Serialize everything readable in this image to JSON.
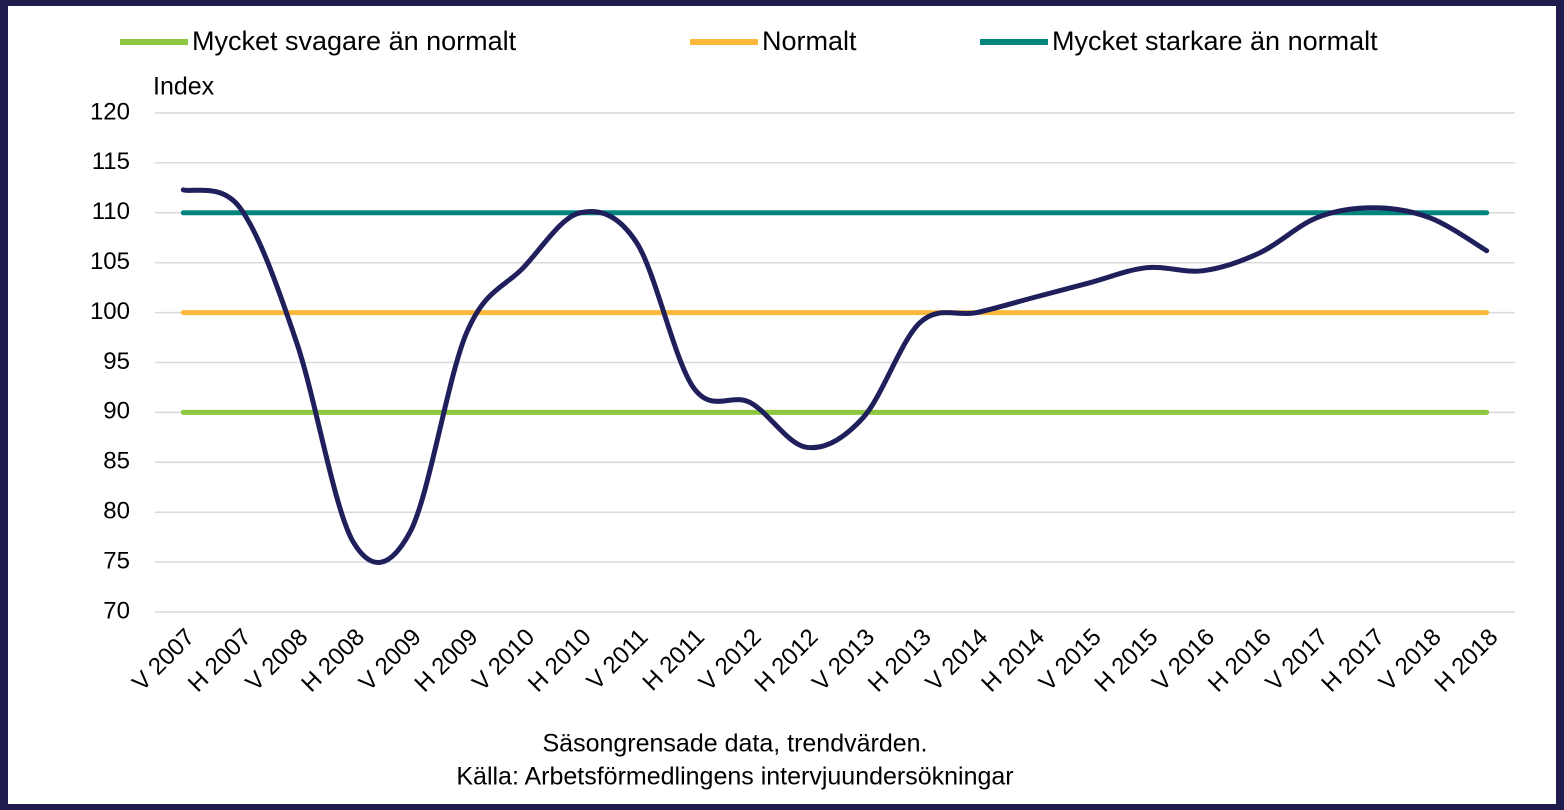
{
  "chart_data": {
    "type": "line",
    "y_label": "Index",
    "categories": [
      "V 2007",
      "H 2007",
      "V 2008",
      "H 2008",
      "V 2009",
      "H 2009",
      "V 2010",
      "H 2010",
      "V 2011",
      "H 2011",
      "V 2012",
      "H 2012",
      "V 2013",
      "H 2013",
      "V 2014",
      "H 2014",
      "V 2015",
      "H 2015",
      "V 2016",
      "H 2016",
      "V 2017",
      "H 2017",
      "V 2018",
      "H 2018"
    ],
    "series": [
      {
        "name": "Mycket svagare än normalt",
        "color": "#8dc63f",
        "values": [
          90,
          90,
          90,
          90,
          90,
          90,
          90,
          90,
          90,
          90,
          90,
          90,
          90,
          90,
          90,
          90,
          90,
          90,
          90,
          90,
          90,
          90,
          90,
          90
        ]
      },
      {
        "name": "Normalt",
        "color": "#fbb93b",
        "values": [
          100,
          100,
          100,
          100,
          100,
          100,
          100,
          100,
          100,
          100,
          100,
          100,
          100,
          100,
          100,
          100,
          100,
          100,
          100,
          100,
          100,
          100,
          100,
          100
        ]
      },
      {
        "name": "Mycket starkare än normalt",
        "color": "#00857c",
        "values": [
          110,
          110,
          110,
          110,
          110,
          110,
          110,
          110,
          110,
          110,
          110,
          110,
          110,
          110,
          110,
          110,
          110,
          110,
          110,
          110,
          110,
          110,
          110,
          110
        ]
      },
      {
        "color": "#1f1f5c",
        "values": [
          112.3,
          110.5,
          97,
          77,
          78,
          98,
          104.5,
          110,
          107,
          92.5,
          91,
          86.5,
          89.5,
          99,
          100,
          101.5,
          103,
          104.5,
          104.2,
          106,
          109.5,
          110.5,
          109.5,
          106.2
        ]
      }
    ],
    "ylim": [
      70,
      120
    ],
    "yticks": [
      70,
      75,
      80,
      85,
      90,
      95,
      100,
      105,
      110,
      115,
      120
    ],
    "grid": true,
    "notes": [
      "Säsongrensade data, trendvärden.",
      "Källa: Arbetsförmedlingens  intervjuundersökningar"
    ]
  }
}
